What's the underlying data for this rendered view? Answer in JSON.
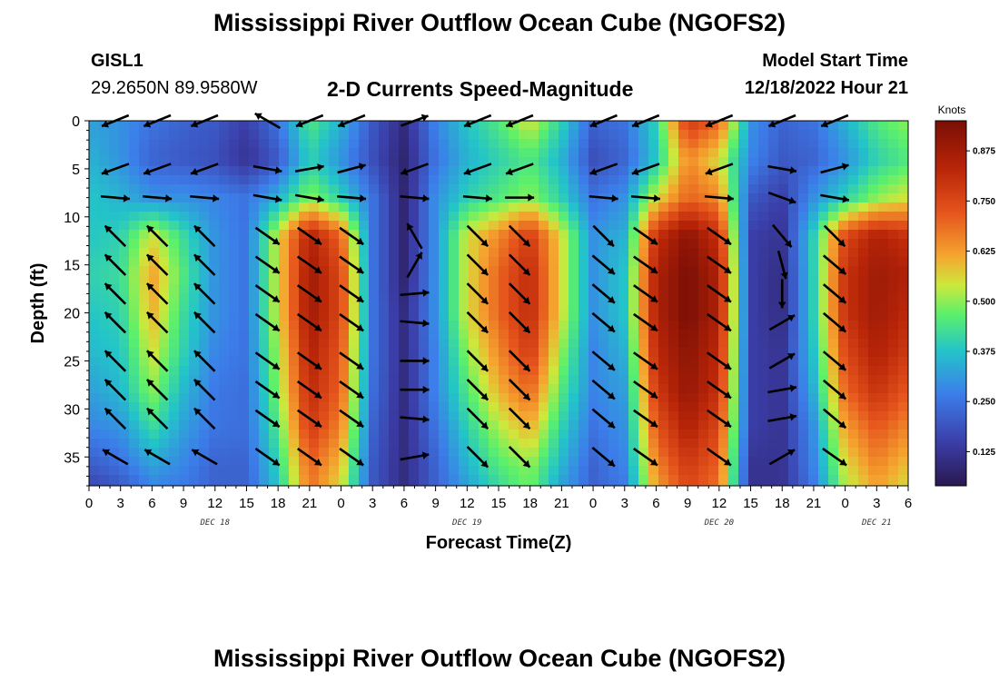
{
  "header": {
    "title": "Mississippi River Outflow Ocean Cube (NGOFS2)",
    "station_id": "GISL1",
    "station_coords": "29.2650N  89.9580W",
    "subtitle": "2-D Currents Speed-Magnitude",
    "model_start_label": "Model Start Time",
    "model_start_value": "12/18/2022 Hour 21"
  },
  "footer": {
    "title": "Mississippi River Outflow Ocean Cube (NGOFS2)"
  },
  "chart_data": {
    "type": "heatmap",
    "title": "2-D Currents Speed-Magnitude",
    "xlabel": "Forecast Time(Z)",
    "ylabel": "Depth (ft)",
    "x_hours_from_dec18_00": [
      0,
      78
    ],
    "ylim": [
      0,
      38
    ],
    "x_tick_labels": [
      "0",
      "3",
      "6",
      "9",
      "12",
      "15",
      "18",
      "21",
      "0",
      "3",
      "6",
      "9",
      "12",
      "15",
      "18",
      "21",
      "0",
      "3",
      "6",
      "9",
      "12",
      "15",
      "18",
      "21",
      "0",
      "3",
      "6"
    ],
    "y_ticks": [
      0,
      5,
      10,
      15,
      20,
      25,
      30,
      35
    ],
    "date_labels": [
      {
        "label": "DEC 18",
        "hour": 12
      },
      {
        "label": "DEC 19",
        "hour": 36
      },
      {
        "label": "DEC 20",
        "hour": 60
      },
      {
        "label": "DEC 21",
        "hour": 75
      }
    ],
    "colorbar": {
      "unit_label": "Knots",
      "min": 0.04,
      "max": 0.95,
      "ticks": [
        0.125,
        0.25,
        0.375,
        0.5,
        0.625,
        0.75,
        0.875
      ],
      "tick_labels": [
        "0.125",
        "0.250",
        "0.375",
        "0.500",
        "0.625",
        "0.750",
        "0.875"
      ]
    },
    "speed_grid": {
      "description": "current speed (knots); rows = depth bands, cols = forecast hour",
      "depths_ft": [
        0,
        4,
        8,
        12,
        16,
        20,
        24,
        28,
        32,
        36,
        38
      ],
      "hours": [
        0,
        3,
        6,
        9,
        12,
        15,
        18,
        21,
        24,
        27,
        30,
        33,
        36,
        39,
        42,
        45,
        48,
        51,
        54,
        57,
        60,
        63,
        66,
        69,
        72,
        75,
        78
      ],
      "values": [
        [
          0.32,
          0.3,
          0.25,
          0.22,
          0.2,
          0.15,
          0.25,
          0.45,
          0.35,
          0.2,
          0.1,
          0.28,
          0.38,
          0.45,
          0.55,
          0.4,
          0.22,
          0.25,
          0.4,
          0.78,
          0.7,
          0.3,
          0.22,
          0.25,
          0.35,
          0.45,
          0.5
        ],
        [
          0.35,
          0.3,
          0.22,
          0.2,
          0.18,
          0.12,
          0.2,
          0.4,
          0.3,
          0.18,
          0.08,
          0.25,
          0.35,
          0.4,
          0.45,
          0.35,
          0.18,
          0.22,
          0.38,
          0.65,
          0.55,
          0.28,
          0.2,
          0.22,
          0.3,
          0.4,
          0.45
        ],
        [
          0.38,
          0.35,
          0.3,
          0.3,
          0.28,
          0.25,
          0.35,
          0.5,
          0.4,
          0.25,
          0.08,
          0.3,
          0.4,
          0.45,
          0.5,
          0.4,
          0.25,
          0.3,
          0.55,
          0.7,
          0.65,
          0.2,
          0.15,
          0.3,
          0.4,
          0.5,
          0.55
        ],
        [
          0.38,
          0.4,
          0.55,
          0.42,
          0.3,
          0.25,
          0.55,
          0.85,
          0.7,
          0.25,
          0.08,
          0.3,
          0.55,
          0.65,
          0.78,
          0.55,
          0.3,
          0.35,
          0.8,
          0.92,
          0.8,
          0.15,
          0.12,
          0.4,
          0.75,
          0.85,
          0.8
        ],
        [
          0.4,
          0.42,
          0.62,
          0.45,
          0.3,
          0.25,
          0.55,
          0.88,
          0.75,
          0.25,
          0.08,
          0.3,
          0.55,
          0.7,
          0.82,
          0.55,
          0.3,
          0.38,
          0.85,
          0.95,
          0.85,
          0.15,
          0.1,
          0.4,
          0.8,
          0.88,
          0.85
        ],
        [
          0.38,
          0.4,
          0.6,
          0.42,
          0.3,
          0.25,
          0.55,
          0.88,
          0.75,
          0.25,
          0.1,
          0.3,
          0.55,
          0.7,
          0.82,
          0.55,
          0.3,
          0.38,
          0.85,
          0.95,
          0.85,
          0.15,
          0.1,
          0.4,
          0.8,
          0.88,
          0.82
        ],
        [
          0.36,
          0.38,
          0.55,
          0.4,
          0.28,
          0.25,
          0.52,
          0.85,
          0.72,
          0.25,
          0.1,
          0.28,
          0.5,
          0.65,
          0.78,
          0.5,
          0.28,
          0.35,
          0.82,
          0.92,
          0.82,
          0.15,
          0.12,
          0.38,
          0.75,
          0.85,
          0.78
        ],
        [
          0.32,
          0.36,
          0.5,
          0.36,
          0.26,
          0.24,
          0.5,
          0.82,
          0.7,
          0.24,
          0.1,
          0.28,
          0.45,
          0.6,
          0.7,
          0.45,
          0.28,
          0.32,
          0.78,
          0.9,
          0.8,
          0.15,
          0.12,
          0.35,
          0.7,
          0.8,
          0.72
        ],
        [
          0.28,
          0.3,
          0.42,
          0.32,
          0.25,
          0.24,
          0.45,
          0.78,
          0.65,
          0.22,
          0.1,
          0.25,
          0.4,
          0.52,
          0.6,
          0.4,
          0.25,
          0.3,
          0.72,
          0.85,
          0.75,
          0.15,
          0.12,
          0.3,
          0.62,
          0.72,
          0.65
        ],
        [
          0.2,
          0.24,
          0.32,
          0.28,
          0.22,
          0.22,
          0.4,
          0.7,
          0.58,
          0.2,
          0.1,
          0.22,
          0.35,
          0.45,
          0.5,
          0.35,
          0.22,
          0.28,
          0.65,
          0.78,
          0.7,
          0.12,
          0.12,
          0.28,
          0.55,
          0.65,
          0.58
        ],
        [
          0.16,
          0.2,
          0.28,
          0.26,
          0.22,
          0.22,
          0.38,
          0.68,
          0.55,
          0.2,
          0.1,
          0.22,
          0.32,
          0.42,
          0.48,
          0.32,
          0.22,
          0.26,
          0.62,
          0.75,
          0.68,
          0.12,
          0.12,
          0.26,
          0.52,
          0.62,
          0.55
        ]
      ]
    },
    "vectors": {
      "description": "current direction arrows, degrees clockwise from north (direction toward)",
      "depths_ft": [
        0,
        5,
        8,
        12,
        15,
        18,
        21,
        25,
        28,
        31,
        35
      ],
      "hours": [
        2.5,
        6.5,
        11,
        17,
        21,
        25,
        31,
        37,
        41,
        49,
        53,
        60,
        66,
        71
      ],
      "angles": [
        [
          248,
          248,
          248,
          300,
          248,
          248,
          70,
          248,
          248,
          248,
          248,
          248,
          248,
          248
        ],
        [
          250,
          250,
          250,
          100,
          80,
          75,
          250,
          250,
          250,
          250,
          250,
          250,
          100,
          75
        ],
        [
          95,
          95,
          95,
          100,
          100,
          95,
          95,
          95,
          90,
          95,
          95,
          95,
          110,
          100
        ],
        [
          315,
          315,
          315,
          125,
          125,
          125,
          330,
          135,
          135,
          135,
          125,
          125,
          140,
          135
        ],
        [
          315,
          315,
          315,
          125,
          125,
          125,
          30,
          135,
          135,
          130,
          125,
          125,
          165,
          130
        ],
        [
          315,
          315,
          315,
          125,
          125,
          125,
          85,
          135,
          135,
          130,
          125,
          125,
          180,
          130
        ],
        [
          315,
          315,
          315,
          125,
          125,
          125,
          95,
          135,
          135,
          130,
          125,
          125,
          60,
          130
        ],
        [
          315,
          315,
          315,
          125,
          125,
          125,
          90,
          135,
          135,
          130,
          125,
          125,
          60,
          130
        ],
        [
          315,
          315,
          315,
          125,
          125,
          125,
          90,
          135,
          135,
          130,
          125,
          125,
          80,
          130
        ],
        [
          315,
          315,
          315,
          125,
          125,
          125,
          95,
          135,
          135,
          130,
          125,
          125,
          80,
          130
        ],
        [
          300,
          300,
          300,
          125,
          125,
          125,
          80,
          135,
          135,
          130,
          125,
          125,
          60,
          125
        ]
      ]
    }
  }
}
